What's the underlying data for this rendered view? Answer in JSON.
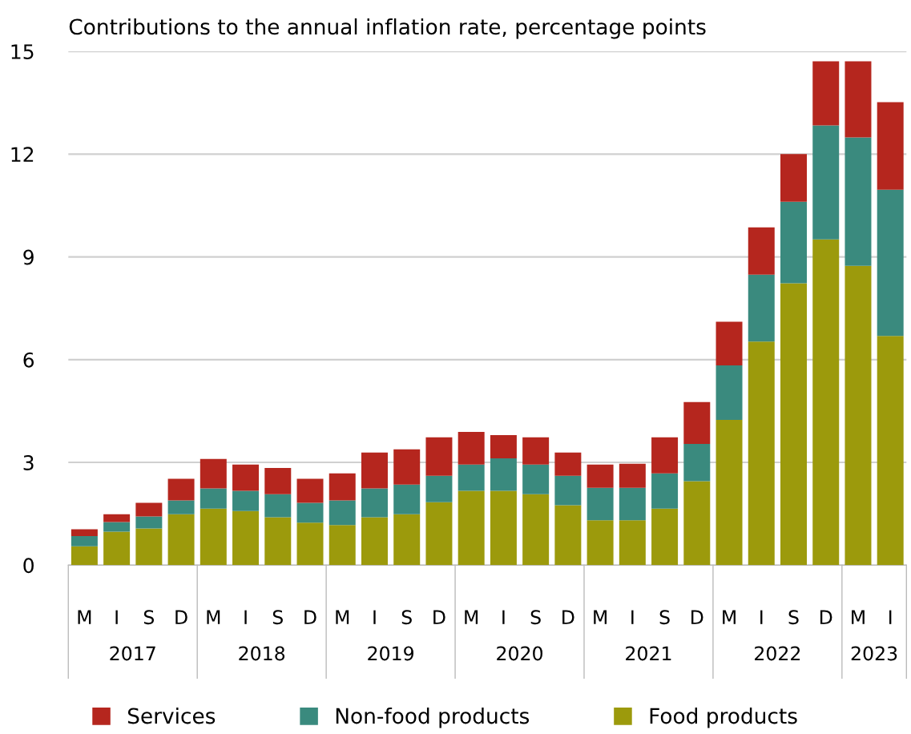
{
  "chart_data": {
    "type": "bar",
    "title": "Contributions to the annual inflation rate, percentage points",
    "categories": [
      "M",
      "I",
      "S",
      "D",
      "M",
      "I",
      "S",
      "D",
      "M",
      "I",
      "S",
      "D",
      "M",
      "I",
      "S",
      "D",
      "M",
      "I",
      "S",
      "D",
      "M",
      "I",
      "S",
      "D",
      "M",
      "I"
    ],
    "stacked": true,
    "series": [
      {
        "name": "Food products",
        "color": "#9c9a0c",
        "values": [
          0.55,
          0.98,
          1.07,
          1.49,
          1.65,
          1.58,
          1.4,
          1.24,
          1.17,
          1.4,
          1.49,
          1.84,
          2.17,
          2.17,
          2.07,
          1.75,
          1.31,
          1.31,
          1.65,
          2.45,
          4.24,
          6.53,
          8.23,
          9.51,
          8.74,
          6.69
        ]
      },
      {
        "name": "Non-food products",
        "color": "#3a8a7e",
        "values": [
          0.3,
          0.28,
          0.35,
          0.4,
          0.59,
          0.59,
          0.67,
          0.58,
          0.72,
          0.84,
          0.86,
          0.77,
          0.77,
          0.95,
          0.87,
          0.86,
          0.95,
          0.95,
          1.03,
          1.09,
          1.59,
          1.95,
          2.38,
          3.33,
          3.75,
          4.27
        ]
      },
      {
        "name": "Services",
        "color": "#b5261e",
        "values": [
          0.2,
          0.23,
          0.4,
          0.63,
          0.86,
          0.77,
          0.77,
          0.7,
          0.79,
          1.05,
          1.03,
          1.12,
          0.95,
          0.68,
          0.79,
          0.68,
          0.68,
          0.7,
          1.05,
          1.22,
          1.28,
          1.38,
          1.39,
          1.87,
          2.22,
          2.56
        ]
      }
    ],
    "annotations": [
      "2017",
      "2018",
      "2019",
      "2020",
      "2021",
      "2022",
      "2023"
    ],
    "ylim": [
      0,
      15
    ],
    "yticks": [
      0,
      3,
      6,
      9,
      12,
      15
    ],
    "grid": "y",
    "legend": "bottom"
  }
}
